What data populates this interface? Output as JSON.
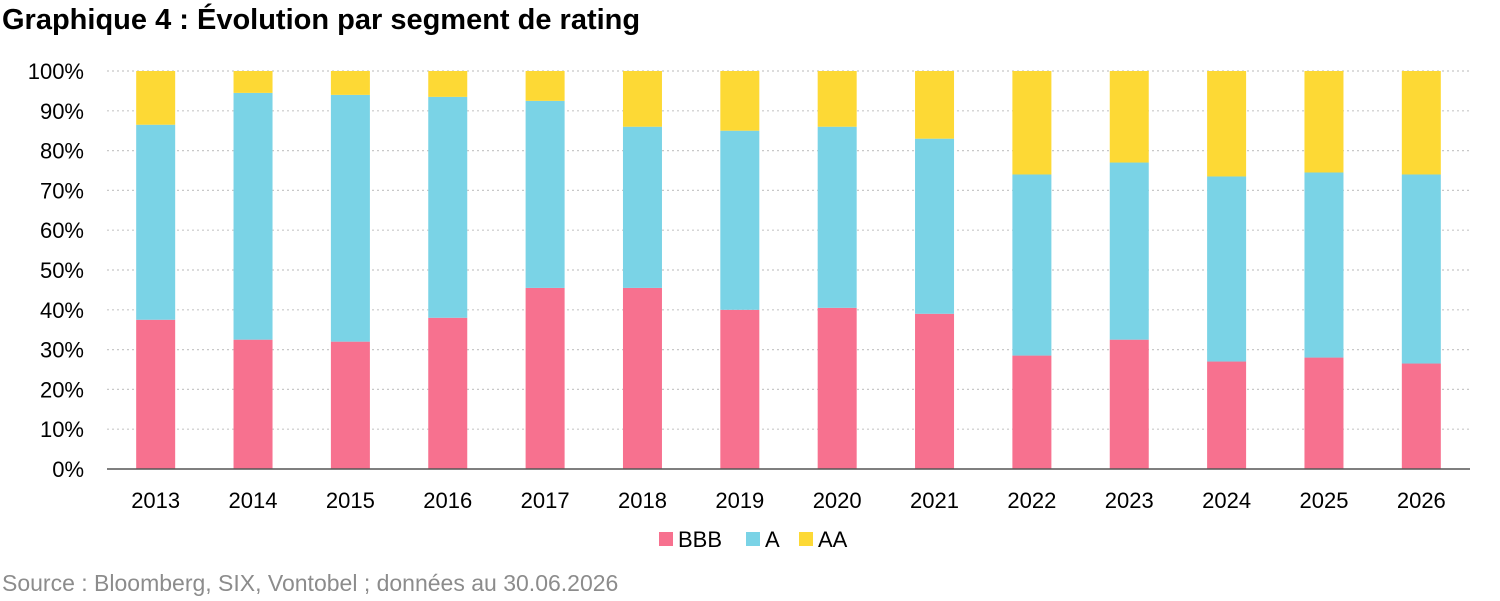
{
  "title": "Graphique 4 : Évolution par segment de rating",
  "source": "Source : Bloomberg, SIX, Vontobel ; données au 30.06.2026",
  "chart_data": {
    "type": "bar",
    "stacked": true,
    "categories": [
      "2013",
      "2014",
      "2015",
      "2016",
      "2017",
      "2018",
      "2019",
      "2020",
      "2021",
      "2022",
      "2023",
      "2024",
      "2025",
      "2026"
    ],
    "series": [
      {
        "name": "BBB",
        "color": "#f7718f",
        "values": [
          37.5,
          32.5,
          32,
          38,
          45.5,
          45.5,
          40,
          40.5,
          39,
          28.5,
          32.5,
          27,
          28,
          26.5
        ]
      },
      {
        "name": "A",
        "color": "#7ad3e6",
        "values": [
          49,
          62,
          62,
          55.5,
          47,
          40.5,
          45,
          45.5,
          44,
          45.5,
          44.5,
          46.5,
          46.5,
          47.5
        ]
      },
      {
        "name": "AA",
        "color": "#fdd935",
        "values": [
          13.5,
          5.5,
          6,
          6.5,
          7.5,
          14,
          15,
          14,
          17,
          26,
          23,
          26.5,
          25.5,
          26
        ]
      }
    ],
    "ylim": [
      0,
      100
    ],
    "yticks": [
      "0%",
      "10%",
      "20%",
      "30%",
      "40%",
      "50%",
      "60%",
      "70%",
      "80%",
      "90%",
      "100%"
    ],
    "grid": true,
    "legend_position": "bottom"
  }
}
